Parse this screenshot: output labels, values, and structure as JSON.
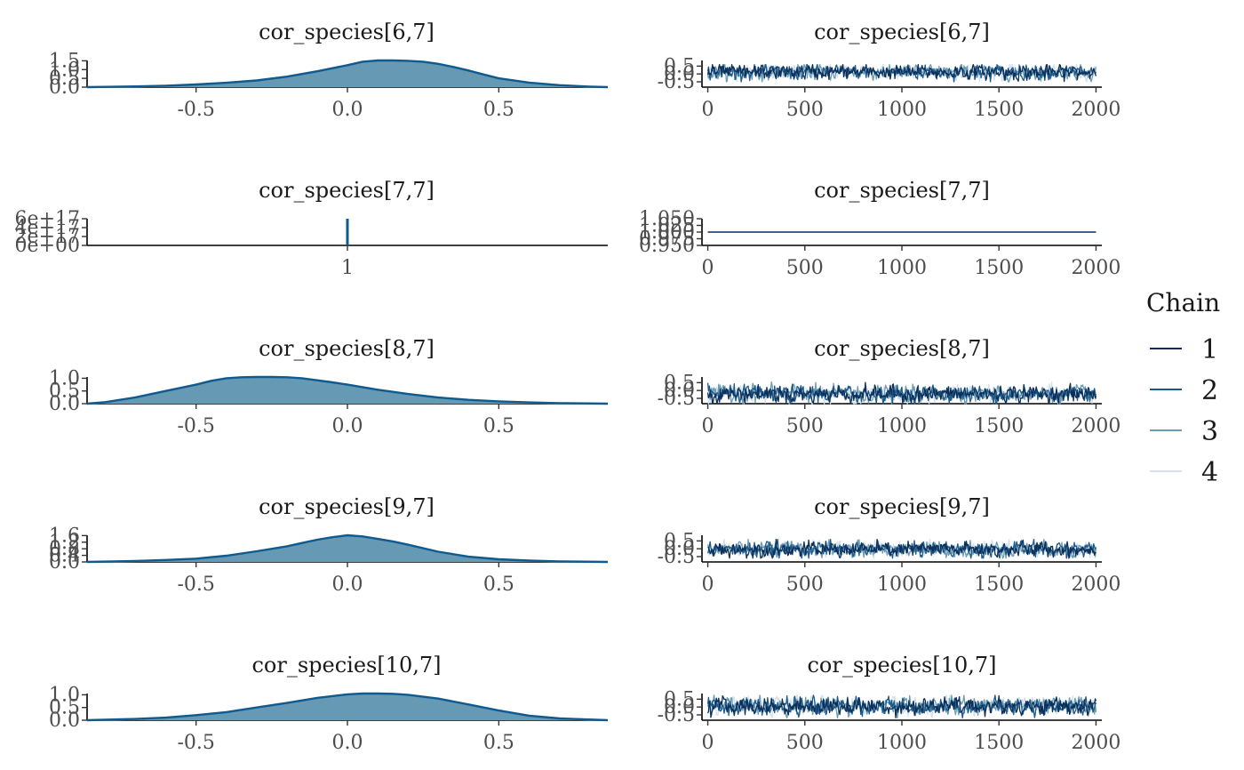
{
  "chart_data": {
    "type": "line",
    "legend": {
      "title": "Chain",
      "position": "right",
      "entries": [
        {
          "label": "1",
          "color": "#0b2f5a"
        },
        {
          "label": "2",
          "color": "#1c5a8a"
        },
        {
          "label": "3",
          "color": "#6b9cb3"
        },
        {
          "label": "4",
          "color": "#d2e1ec"
        }
      ]
    },
    "colors": {
      "density_fill": "#6699b3",
      "density_line": "#0f5a8f",
      "axis": "#000000"
    },
    "panels": [
      {
        "parameter": "cor_species[6,7]",
        "density": {
          "title": "cor_species[6,7]",
          "xlim": [
            -0.86,
            0.86
          ],
          "xticks": [
            -0.5,
            0.0,
            0.5
          ],
          "xtick_labels": [
            "-0.5",
            "0.0",
            "0.5"
          ],
          "ylim": [
            0,
            1.52
          ],
          "yticks": [
            0,
            0.5,
            1.0,
            1.5
          ],
          "ytick_labels": [
            "0.0",
            "0.5",
            "1.0",
            "1.5"
          ],
          "x": [
            -0.86,
            -0.7,
            -0.6,
            -0.5,
            -0.4,
            -0.3,
            -0.2,
            -0.1,
            0.0,
            0.05,
            0.1,
            0.15,
            0.2,
            0.25,
            0.3,
            0.35,
            0.4,
            0.45,
            0.5,
            0.6,
            0.7,
            0.8,
            0.86
          ],
          "y": [
            0.0,
            0.04,
            0.08,
            0.15,
            0.25,
            0.38,
            0.6,
            0.9,
            1.25,
            1.45,
            1.52,
            1.52,
            1.5,
            1.45,
            1.33,
            1.15,
            0.95,
            0.72,
            0.5,
            0.26,
            0.11,
            0.03,
            0.0
          ]
        },
        "trace": {
          "title": "cor_species[6,7]",
          "xlim": [
            -30,
            2030
          ],
          "xticks": [
            0,
            500,
            1000,
            1500,
            2000
          ],
          "xtick_labels": [
            "0",
            "500",
            "1000",
            "1500",
            "2000"
          ],
          "ylim": [
            -0.84,
            0.86
          ],
          "yticks": [
            -0.5,
            0.0,
            0.5
          ],
          "ytick_labels": [
            "-0.5",
            "0.0",
            "0.5"
          ],
          "iterations": 2000,
          "center": 0.12,
          "spread": 0.23,
          "range": [
            -0.5,
            0.6
          ]
        }
      },
      {
        "parameter": "cor_species[7,7]",
        "density": {
          "title": "cor_species[7,7]",
          "xlim": [
            -0.86,
            0.86
          ],
          "xticks": [
            0
          ],
          "xtick_labels": [
            "1"
          ],
          "ylim": [
            0,
            6e+17
          ],
          "yticks": [
            0,
            2e+17,
            4e+17,
            6e+17
          ],
          "ytick_labels": [
            "0e+00",
            "2e+17",
            "4e+17",
            "6e+17"
          ],
          "spike_at": 1
        },
        "trace": {
          "title": "cor_species[7,7]",
          "xlim": [
            -30,
            2030
          ],
          "xticks": [
            0,
            500,
            1000,
            1500,
            2000
          ],
          "xtick_labels": [
            "0",
            "500",
            "1000",
            "1500",
            "2000"
          ],
          "ylim": [
            0.95,
            1.05
          ],
          "yticks": [
            0.95,
            0.975,
            1.0,
            1.025,
            1.05
          ],
          "ytick_labels": [
            "0.950",
            "0.975",
            "1.000",
            "1.025",
            "1.050"
          ],
          "iterations": 2000,
          "constant": 1.0
        }
      },
      {
        "parameter": "cor_species[8,7]",
        "density": {
          "title": "cor_species[8,7]",
          "xlim": [
            -0.86,
            0.86
          ],
          "xticks": [
            -0.5,
            0.0,
            0.5
          ],
          "xtick_labels": [
            "-0.5",
            "0.0",
            "0.5"
          ],
          "ylim": [
            0,
            1.05
          ],
          "yticks": [
            0,
            0.5,
            1.0
          ],
          "ytick_labels": [
            "0.0",
            "0.5",
            "1.0"
          ],
          "x": [
            -0.86,
            -0.8,
            -0.7,
            -0.6,
            -0.5,
            -0.45,
            -0.4,
            -0.35,
            -0.3,
            -0.25,
            -0.2,
            -0.15,
            -0.1,
            -0.05,
            0.0,
            0.1,
            0.2,
            0.3,
            0.4,
            0.5,
            0.6,
            0.7,
            0.86
          ],
          "y": [
            0.0,
            0.06,
            0.25,
            0.5,
            0.75,
            0.9,
            1.0,
            1.04,
            1.05,
            1.05,
            1.04,
            1.0,
            0.92,
            0.84,
            0.75,
            0.55,
            0.38,
            0.24,
            0.15,
            0.09,
            0.05,
            0.02,
            0.0
          ]
        },
        "trace": {
          "title": "cor_species[8,7]",
          "xlim": [
            -30,
            2030
          ],
          "xticks": [
            0,
            500,
            1000,
            1500,
            2000
          ],
          "xtick_labels": [
            "0",
            "500",
            "1000",
            "1500",
            "2000"
          ],
          "ylim": [
            -0.84,
            0.86
          ],
          "yticks": [
            -0.5,
            0.0,
            0.5
          ],
          "ytick_labels": [
            "-0.5",
            "0.0",
            "0.5"
          ],
          "iterations": 2000,
          "center": -0.22,
          "spread": 0.26,
          "range": [
            -0.84,
            0.55
          ]
        }
      },
      {
        "parameter": "cor_species[9,7]",
        "density": {
          "title": "cor_species[9,7]",
          "xlim": [
            -0.86,
            0.86
          ],
          "xticks": [
            -0.5,
            0.0,
            0.5
          ],
          "xtick_labels": [
            "-0.5",
            "0.0",
            "0.5"
          ],
          "ylim": [
            0,
            1.62
          ],
          "yticks": [
            0,
            0.4,
            0.8,
            1.2,
            1.6
          ],
          "ytick_labels": [
            "0.0",
            "0.4",
            "0.8",
            "1.2",
            "1.6"
          ],
          "x": [
            -0.86,
            -0.7,
            -0.6,
            -0.5,
            -0.4,
            -0.3,
            -0.2,
            -0.15,
            -0.1,
            -0.05,
            0.0,
            0.05,
            0.1,
            0.15,
            0.2,
            0.3,
            0.4,
            0.5,
            0.6,
            0.7,
            0.86
          ],
          "y": [
            0.0,
            0.06,
            0.12,
            0.2,
            0.38,
            0.65,
            0.95,
            1.15,
            1.35,
            1.5,
            1.62,
            1.55,
            1.4,
            1.25,
            1.05,
            0.62,
            0.32,
            0.16,
            0.08,
            0.03,
            0.0
          ]
        },
        "trace": {
          "title": "cor_species[9,7]",
          "xlim": [
            -30,
            2030
          ],
          "xticks": [
            0,
            500,
            1000,
            1500,
            2000
          ],
          "xtick_labels": [
            "0",
            "500",
            "1000",
            "1500",
            "2000"
          ],
          "ylim": [
            -0.84,
            0.86
          ],
          "yticks": [
            -0.5,
            0.0,
            0.5
          ],
          "ytick_labels": [
            "-0.5",
            "0.0",
            "0.5"
          ],
          "iterations": 2000,
          "center": -0.04,
          "spread": 0.24,
          "range": [
            -0.6,
            0.6
          ]
        }
      },
      {
        "parameter": "cor_species[10,7]",
        "density": {
          "title": "cor_species[10,7]",
          "xlim": [
            -0.86,
            0.86
          ],
          "xticks": [
            -0.5,
            0.0,
            0.5
          ],
          "xtick_labels": [
            "-0.5",
            "0.0",
            "0.5"
          ],
          "ylim": [
            0,
            1.05
          ],
          "yticks": [
            0,
            0.5,
            1.0
          ],
          "ytick_labels": [
            "0.0",
            "0.5",
            "1.0"
          ],
          "x": [
            -0.86,
            -0.7,
            -0.6,
            -0.5,
            -0.4,
            -0.3,
            -0.2,
            -0.1,
            0.0,
            0.05,
            0.1,
            0.15,
            0.2,
            0.3,
            0.4,
            0.5,
            0.6,
            0.7,
            0.86
          ],
          "y": [
            0.0,
            0.05,
            0.1,
            0.2,
            0.32,
            0.5,
            0.68,
            0.88,
            1.02,
            1.05,
            1.05,
            1.04,
            1.0,
            0.85,
            0.62,
            0.38,
            0.18,
            0.07,
            0.0
          ]
        },
        "trace": {
          "title": "cor_species[10,7]",
          "xlim": [
            -30,
            2030
          ],
          "xticks": [
            0,
            500,
            1000,
            1500,
            2000
          ],
          "xtick_labels": [
            "0",
            "500",
            "1000",
            "1500",
            "2000"
          ],
          "ylim": [
            -0.84,
            0.86
          ],
          "yticks": [
            -0.5,
            0.0,
            0.5
          ],
          "ytick_labels": [
            "-0.5",
            "0.0",
            "0.5"
          ],
          "iterations": 2000,
          "center": 0.05,
          "spread": 0.27,
          "range": [
            -0.7,
            0.75
          ]
        }
      }
    ]
  }
}
